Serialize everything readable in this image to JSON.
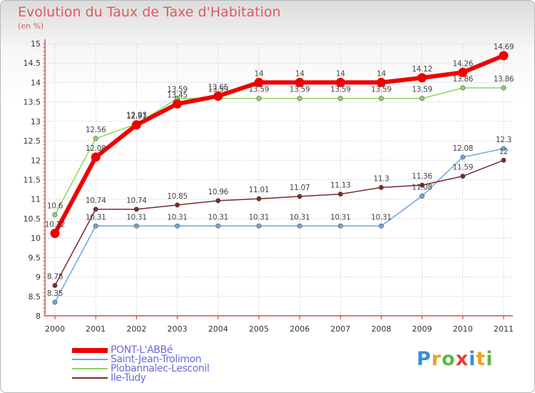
{
  "header": {
    "title": "Evolution du Taux de Taxe d'Habitation",
    "subtitle": "(en %)"
  },
  "logo": {
    "text": "Proxiti"
  },
  "chart_data": {
    "type": "line",
    "categories": [
      "2000",
      "2001",
      "2002",
      "2003",
      "2004",
      "2005",
      "2006",
      "2007",
      "2008",
      "2009",
      "2010",
      "2011"
    ],
    "ylim": [
      8,
      15
    ],
    "yticks": [
      8,
      8.5,
      9,
      9.5,
      10,
      10.5,
      11,
      11.5,
      12,
      12.5,
      13,
      13.5,
      14,
      14.5,
      15
    ],
    "grid": true,
    "legend_position": "bottom-left",
    "series": [
      {
        "name": "PONT-L'ABBé",
        "color": "#ee0000",
        "width": 6,
        "marker": 6.5,
        "values": [
          10.12,
          12.08,
          12.91,
          13.45,
          13.65,
          14,
          14,
          14,
          14,
          14.12,
          14.26,
          14.69
        ],
        "labels": [
          "10.12",
          "12.08",
          "12.91",
          "13.45",
          "13.65",
          "14",
          "14",
          "14",
          "14",
          "14.12",
          "14.26",
          "14.69"
        ]
      },
      {
        "name": "Saint-Jean-Trolimon",
        "color": "#6fa6d8",
        "width": 1.5,
        "marker": 3.2,
        "values": [
          8.35,
          10.31,
          10.31,
          10.31,
          10.31,
          10.31,
          10.31,
          10.31,
          10.31,
          11.08,
          12.08,
          12.3
        ],
        "labels": [
          "8.35",
          "10.31",
          "10.31",
          "10.31",
          "10.31",
          "10.31",
          "10.31",
          "10.31",
          "10.31",
          "11.08",
          "12.08",
          "12.3"
        ]
      },
      {
        "name": "Plobannalec-Lesconil",
        "color": "#8fd45a",
        "width": 1.5,
        "marker": 3.2,
        "values": [
          10.6,
          12.56,
          12.93,
          13.59,
          13.59,
          13.59,
          13.59,
          13.59,
          13.59,
          13.59,
          13.86,
          13.86
        ],
        "labels": [
          "10.6",
          "12.56",
          "12.93",
          "13.59",
          "13.59",
          "13.59",
          "13.59",
          "13.59",
          "13.59",
          "13.59",
          "13.86",
          "13.86"
        ]
      },
      {
        "name": "Ile-Tudy",
        "color": "#7a2a2a",
        "width": 1.5,
        "marker": 3.2,
        "values": [
          8.78,
          10.74,
          10.74,
          10.85,
          10.96,
          11.01,
          11.07,
          11.13,
          11.3,
          11.36,
          11.59,
          12
        ],
        "labels": [
          "8.78",
          "10.74",
          "10.74",
          "10.85",
          "10.96",
          "11.01",
          "11.07",
          "11.13",
          "11.3",
          "11.36",
          "11.59",
          "12"
        ]
      }
    ]
  }
}
